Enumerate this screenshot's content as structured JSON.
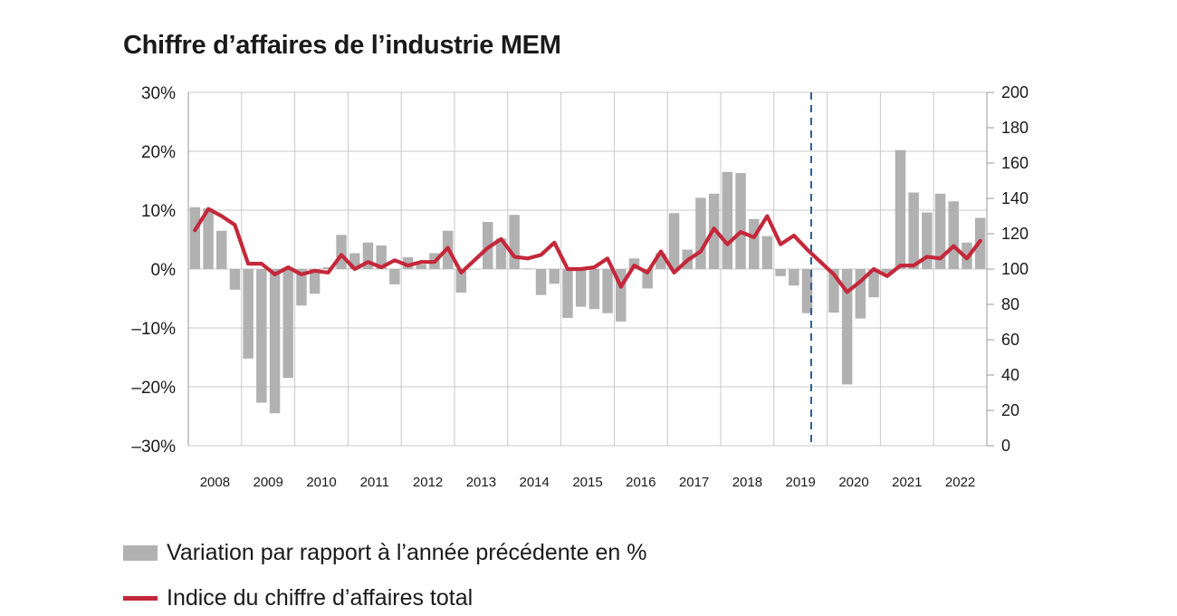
{
  "title": "Chiffre d’affaires de l’industrie MEM",
  "colors": {
    "bars": "#b1b1b1",
    "line": "#c4283a",
    "grid": "#c8c8c8",
    "forecast_line": "#2f5c8a"
  },
  "legend": {
    "bars_label": "Variation par rapport à l’année précédente en %",
    "line_label": "Indice du chiffre d’affaires total"
  },
  "chart_data": {
    "type": "bar+line",
    "title": "Chiffre d’affaires de l’industrie MEM",
    "x_tick_labels": [
      "2008",
      "2009",
      "2010",
      "2011",
      "2012",
      "2013",
      "2014",
      "2015",
      "2016",
      "2017",
      "2018",
      "2019",
      "2020",
      "2021",
      "2022"
    ],
    "left_axis": {
      "ylim": [
        -30,
        30
      ],
      "ticks": [
        "30%",
        "20%",
        "10%",
        "0%",
        "–10%",
        "–20%",
        "–30%"
      ],
      "tick_values": [
        30,
        20,
        10,
        0,
        -10,
        -20,
        -30
      ]
    },
    "right_axis": {
      "ylim": [
        0,
        200
      ],
      "ticks": [
        "200",
        "180",
        "160",
        "140",
        "120",
        "100",
        "80",
        "60",
        "40",
        "20",
        "0"
      ],
      "tick_values": [
        200,
        180,
        160,
        140,
        120,
        100,
        80,
        60,
        40,
        20,
        0
      ]
    },
    "x_range": [
      2008.0,
      2023.0
    ],
    "x": [
      2008.0,
      2008.25,
      2008.5,
      2008.75,
      2009.0,
      2009.25,
      2009.5,
      2009.75,
      2010.0,
      2010.25,
      2010.5,
      2010.75,
      2011.0,
      2011.25,
      2011.5,
      2011.75,
      2012.0,
      2012.25,
      2012.5,
      2012.75,
      2013.0,
      2013.25,
      2013.5,
      2013.75,
      2014.0,
      2014.25,
      2014.5,
      2014.75,
      2015.0,
      2015.25,
      2015.5,
      2015.75,
      2016.0,
      2016.25,
      2016.5,
      2016.75,
      2017.0,
      2017.25,
      2017.5,
      2017.75,
      2018.0,
      2018.25,
      2018.5,
      2018.75,
      2019.0,
      2019.25,
      2019.5,
      2019.75,
      2020.0,
      2020.25,
      2020.5,
      2020.75,
      2021.0,
      2021.25,
      2021.5,
      2021.75,
      2022.0,
      2022.25,
      2022.5,
      2022.75
    ],
    "series": [
      {
        "name": "Variation par rapport à l’année précédente en %",
        "type": "bar",
        "axis": "left",
        "values": [
          10.5,
          10.3,
          6.5,
          -3.5,
          -15.2,
          -22.7,
          -24.5,
          -18.5,
          -6.2,
          -4.2,
          0.3,
          5.8,
          2.7,
          4.5,
          4.0,
          -2.6,
          2.0,
          0.8,
          2.7,
          6.5,
          -4.0,
          0.0,
          8.0,
          5.2,
          9.2,
          0.1,
          -4.4,
          -2.5,
          -8.3,
          -6.4,
          -6.8,
          -7.5,
          -8.9,
          1.8,
          -3.3,
          2.7,
          9.5,
          3.3,
          12.1,
          12.8,
          16.5,
          16.3,
          8.5,
          5.6,
          -1.2,
          -2.8,
          -7.5,
          0.0,
          -7.4,
          -19.6,
          -8.4,
          -4.8,
          -0.7,
          20.2,
          13.0,
          9.6,
          12.8,
          11.5,
          4.5,
          8.7
        ]
      },
      {
        "name": "Indice du chiffre d’affaires total",
        "type": "line",
        "axis": "right",
        "values": [
          122,
          134,
          130,
          125,
          103,
          103,
          97,
          101,
          97,
          99,
          98,
          108,
          100,
          104,
          101,
          105,
          102,
          104,
          104,
          112,
          98,
          105,
          112,
          117,
          107,
          106,
          108,
          115,
          100,
          100,
          101,
          106,
          90,
          102,
          98,
          110,
          98,
          105,
          110,
          123,
          114,
          121,
          118,
          130,
          114,
          119,
          111,
          104,
          97,
          87,
          93,
          100,
          96,
          102,
          102,
          107,
          106,
          113,
          106,
          116
        ]
      }
    ],
    "forecast_marker_x": 2019.7,
    "grid": {
      "vertical": true,
      "horizontal_left": true
    }
  }
}
